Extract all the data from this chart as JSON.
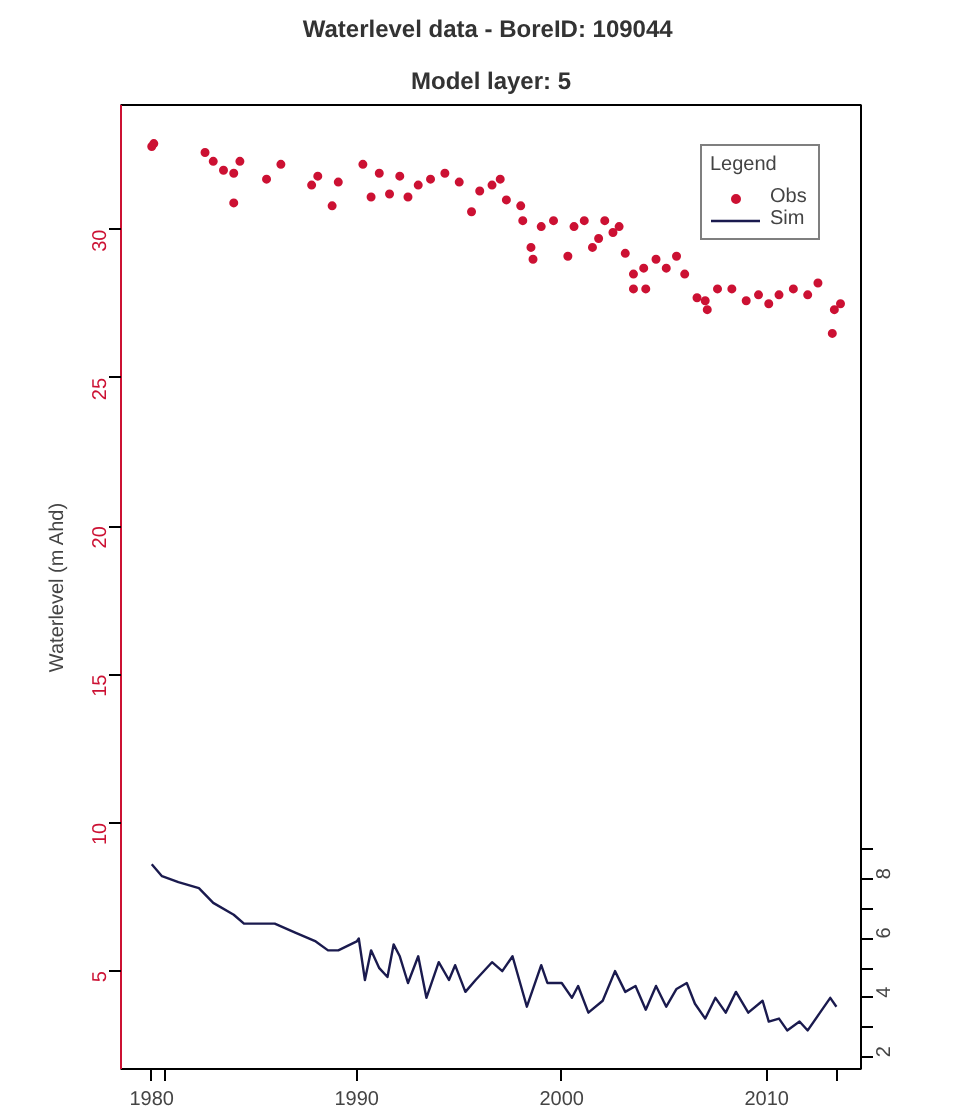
{
  "chart_data": {
    "type": "scatter",
    "title": "Waterlevel data - BoreID:  109044",
    "subtitle": "Model layer: 5",
    "ylabel": "Waterlevel (m Ahd)",
    "legend_title": "Legend",
    "legend": "top right",
    "grid": false,
    "xlim": [
      1978.5,
      2014.6
    ],
    "xticks": [
      1980,
      {
        "value": 1980.6,
        "label": null
      },
      1990,
      2000,
      2010,
      {
        "value": 2013.4,
        "label": null
      }
    ],
    "ylim": [
      1.7,
      34.2
    ],
    "yticks": [
      5,
      10,
      15,
      20,
      25,
      30
    ],
    "y2lim": [
      1.6,
      34.1
    ],
    "y2ticks": [
      2,
      {
        "value": 3,
        "label": null
      },
      4,
      {
        "value": 5,
        "label": null
      },
      6,
      {
        "value": 7,
        "label": null
      },
      8,
      {
        "value": 9,
        "label": null
      }
    ],
    "series": [
      {
        "name": "Obs",
        "marker": "circle",
        "color": "#cc1133",
        "x": [
          1980.0,
          1980.1,
          1982.6,
          1983.0,
          1983.5,
          1984.0,
          1984.3,
          1984.0,
          1985.6,
          1986.3,
          1987.8,
          1988.1,
          1988.8,
          1989.1,
          1990.3,
          1990.7,
          1991.1,
          1991.6,
          1992.1,
          1992.5,
          1993.0,
          1993.6,
          1994.3,
          1995.0,
          1995.6,
          1996.0,
          1996.6,
          1997.0,
          1997.3,
          1998.0,
          1998.1,
          1998.5,
          1998.6,
          1999.0,
          1999.6,
          2000.3,
          2000.6,
          2001.1,
          2001.5,
          2001.8,
          2002.1,
          2002.5,
          2002.8,
          2003.1,
          2003.5,
          2003.5,
          2004.1,
          2004.0,
          2004.6,
          2005.1,
          2005.6,
          2006.0,
          2006.6,
          2007.0,
          2007.1,
          2007.6,
          2008.3,
          2009.0,
          2009.6,
          2010.1,
          2010.6,
          2011.3,
          2012.0,
          2012.5,
          2013.3,
          2013.6,
          2013.2
        ],
        "values": [
          32.8,
          32.9,
          32.6,
          32.3,
          32.0,
          31.9,
          32.3,
          30.9,
          31.7,
          32.2,
          31.5,
          31.8,
          30.8,
          31.6,
          32.2,
          31.1,
          31.9,
          31.2,
          31.8,
          31.1,
          31.5,
          31.7,
          31.9,
          31.6,
          30.6,
          31.3,
          31.5,
          31.7,
          31.0,
          30.8,
          30.3,
          29.4,
          29.0,
          30.1,
          30.3,
          29.1,
          30.1,
          30.3,
          29.4,
          29.7,
          30.3,
          29.9,
          30.1,
          29.2,
          28.5,
          28.0,
          28.0,
          28.7,
          29.0,
          28.7,
          29.1,
          28.5,
          27.7,
          27.6,
          27.3,
          28.0,
          28.0,
          27.6,
          27.8,
          27.5,
          27.8,
          28.0,
          27.8,
          28.2,
          27.3,
          27.5,
          26.5
        ]
      },
      {
        "name": "Sim",
        "type": "line",
        "axis": "y2",
        "line_style": "solid",
        "color": "#1a1a4e",
        "x": [
          1980.0,
          1980.5,
          1981.3,
          1982.3,
          1983.0,
          1984.0,
          1984.5,
          1986.0,
          1987.0,
          1988.0,
          1988.6,
          1989.1,
          1990.0,
          1990.1,
          1990.4,
          1990.7,
          1991.1,
          1991.5,
          1991.8,
          1992.1,
          1992.5,
          1993.0,
          1993.4,
          1994.0,
          1994.5,
          1994.8,
          1995.3,
          1995.8,
          1996.6,
          1997.1,
          1997.6,
          1998.3,
          1999.0,
          1999.3,
          2000.0,
          2000.5,
          2000.8,
          2001.3,
          2002.0,
          2002.6,
          2003.1,
          2003.6,
          2004.1,
          2004.6,
          2005.1,
          2005.6,
          2006.1,
          2006.5,
          2007.0,
          2007.5,
          2008.0,
          2008.5,
          2009.1,
          2009.8,
          2010.1,
          2010.6,
          2011.0,
          2011.6,
          2012.0,
          2012.6,
          2013.1,
          2013.4
        ],
        "values": [
          8.5,
          8.1,
          7.9,
          7.7,
          7.2,
          6.8,
          6.5,
          6.5,
          6.2,
          5.9,
          5.6,
          5.6,
          5.9,
          6.0,
          4.6,
          5.6,
          5.0,
          4.7,
          5.8,
          5.4,
          4.5,
          5.4,
          4.0,
          5.2,
          4.6,
          5.1,
          4.2,
          4.6,
          5.2,
          4.9,
          5.4,
          3.7,
          5.1,
          4.5,
          4.5,
          4.0,
          4.4,
          3.5,
          3.9,
          4.9,
          4.2,
          4.4,
          3.6,
          4.4,
          3.7,
          4.3,
          4.5,
          3.8,
          3.3,
          4.0,
          3.5,
          4.2,
          3.5,
          3.9,
          3.2,
          3.3,
          2.9,
          3.2,
          2.9,
          3.5,
          4.0,
          3.7
        ]
      }
    ]
  }
}
